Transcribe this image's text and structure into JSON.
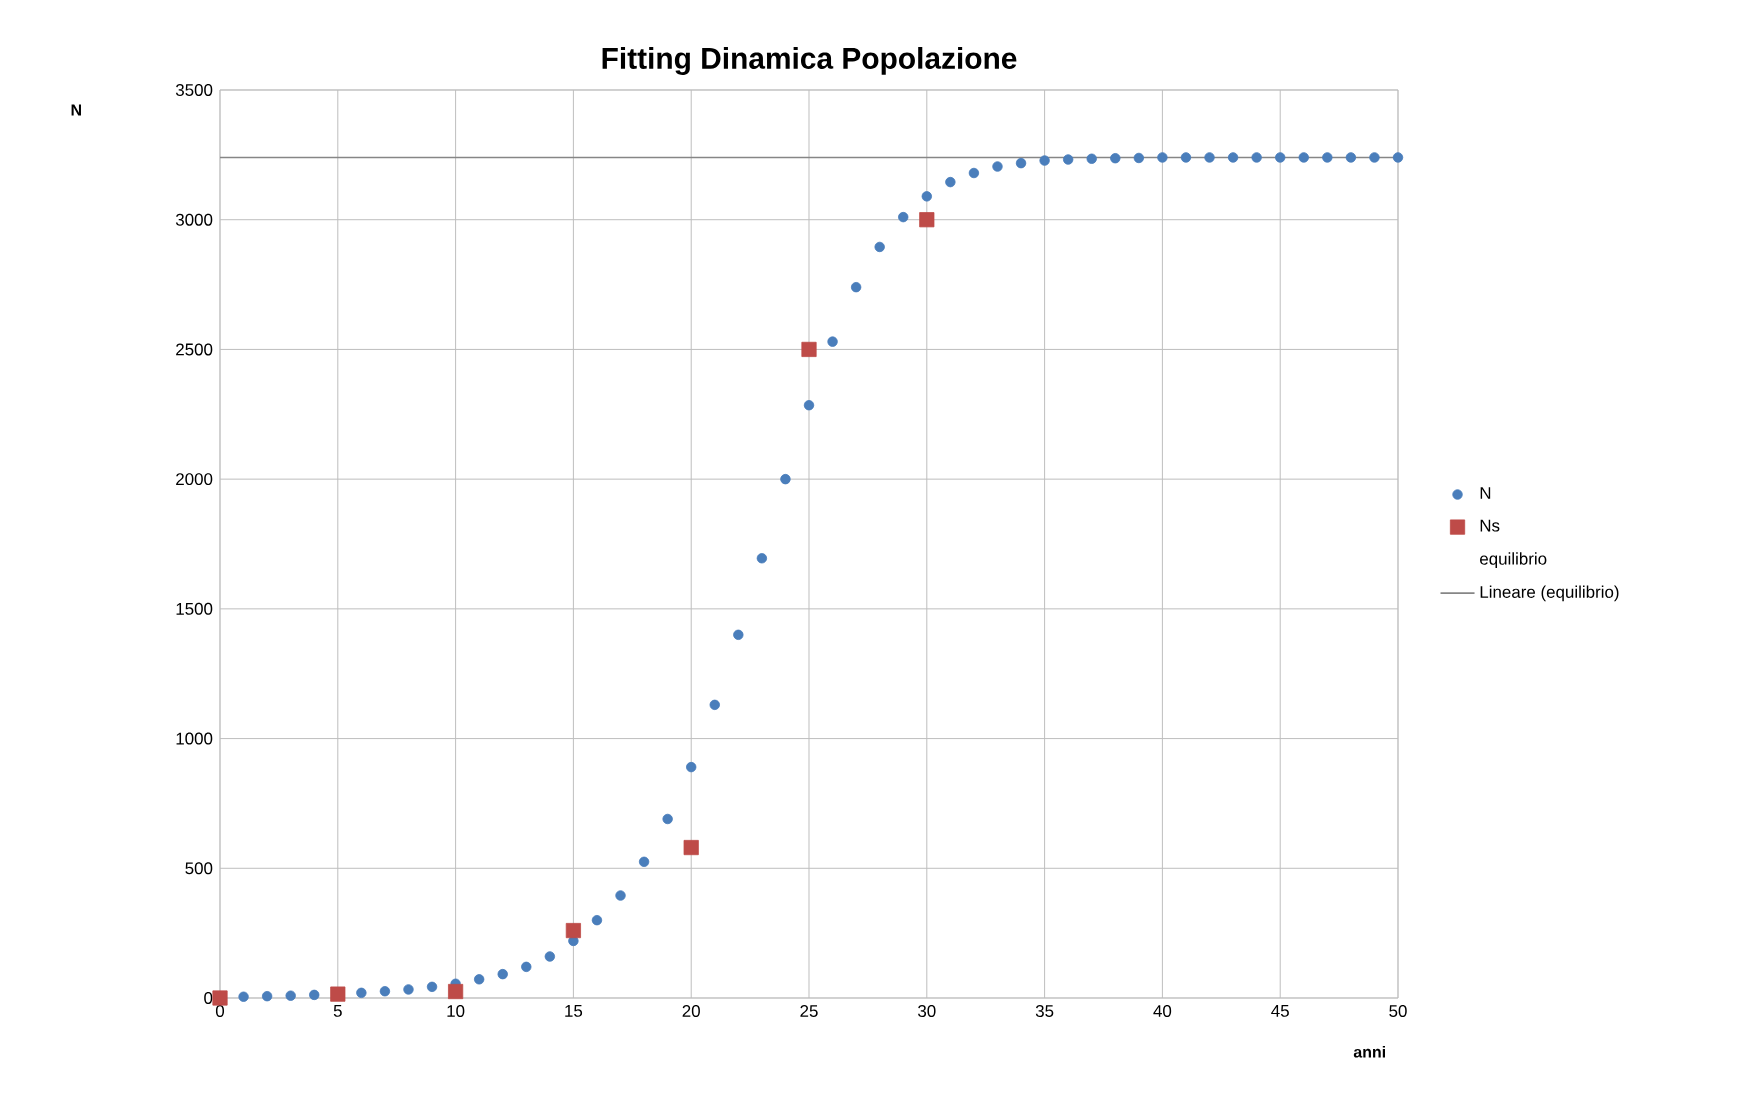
{
  "chart_data": {
    "type": "scatter",
    "title": "Fitting Dinamica Popolazione",
    "xlabel": "anni",
    "annotations": [
      "N"
    ],
    "xlim": [
      0,
      50
    ],
    "xticks": [
      0,
      5,
      10,
      15,
      20,
      25,
      30,
      35,
      40,
      45,
      50
    ],
    "ylim": [
      0,
      3500
    ],
    "yticks": [
      0,
      500,
      1000,
      1500,
      2000,
      2500,
      3000,
      3500
    ],
    "grid": true,
    "legend": "right",
    "series": [
      {
        "name": "N",
        "marker": "circle",
        "color": "#4a7ebb",
        "x": [
          1,
          2,
          3,
          4,
          6,
          7,
          8,
          9,
          10,
          11,
          12,
          13,
          14,
          15,
          16,
          17,
          18,
          19,
          20,
          21,
          22,
          23,
          24,
          25,
          26,
          27,
          28,
          29,
          30,
          31,
          32,
          33,
          34,
          35,
          36,
          37,
          38,
          39,
          40,
          41,
          42,
          43,
          44,
          45,
          46,
          47,
          48,
          49,
          50
        ],
        "values": [
          5,
          7,
          9,
          12,
          20,
          26,
          33,
          43,
          55,
          72,
          92,
          120,
          160,
          220,
          300,
          395,
          525,
          690,
          890,
          1130,
          1400,
          1695,
          2000,
          2285,
          2530,
          2740,
          2895,
          3010,
          3090,
          3145,
          3180,
          3205,
          3218,
          3228,
          3232,
          3235,
          3237,
          3238,
          3240,
          3240,
          3240,
          3240,
          3240,
          3240,
          3240,
          3240,
          3240,
          3240,
          3240
        ]
      },
      {
        "name": "Ns",
        "marker": "square",
        "color": "#be4b48",
        "x": [
          0,
          5,
          10,
          15,
          20,
          25,
          30
        ],
        "values": [
          0,
          15,
          25,
          260,
          580,
          2500,
          3000
        ]
      },
      {
        "name": "equilibrio"
      },
      {
        "name": "Lineare (equilibrio)",
        "type": "line",
        "marker": "none",
        "line_style": "solid",
        "color": "#868686",
        "x": [
          0,
          50
        ],
        "values": [
          3240,
          3240
        ]
      }
    ]
  }
}
